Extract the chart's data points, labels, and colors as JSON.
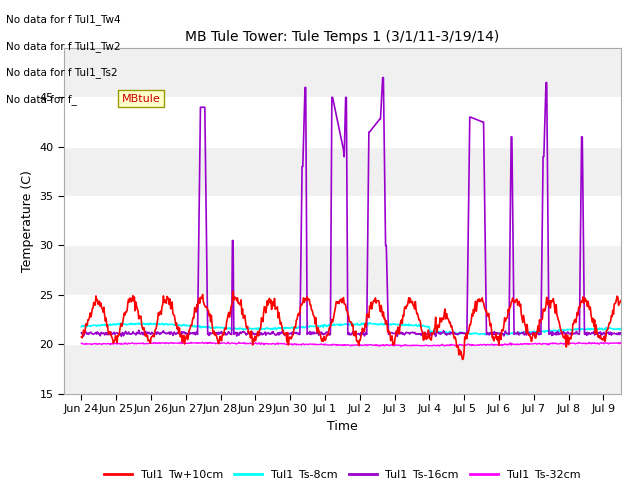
{
  "title": "MB Tule Tower: Tule Temps 1 (3/1/11-3/19/14)",
  "xlabel": "Time",
  "ylabel": "Temperature (C)",
  "ylim": [
    15,
    50
  ],
  "yticks": [
    15,
    20,
    25,
    30,
    35,
    40,
    45
  ],
  "legend_labels": [
    "Tul1_Tw+10cm",
    "Tul1_Ts-8cm",
    "Tul1_Ts-16cm",
    "Tul1_Ts-32cm"
  ],
  "legend_colors": [
    "#ff0000",
    "#00ffff",
    "#9900cc",
    "#ff00ff"
  ],
  "x_tick_labels": [
    "Jun 24",
    "Jun 25",
    "Jun 26",
    "Jun 27",
    "Jun 28",
    "Jun 29",
    "Jun 30",
    "Jul 1",
    "Jul 2",
    "Jul 3",
    "Jul 4",
    "Jul 5",
    "Jul 6",
    "Jul 7",
    "Jul 8",
    "Jul 9"
  ],
  "x_tick_positions": [
    0,
    1,
    2,
    3,
    4,
    5,
    6,
    7,
    8,
    9,
    10,
    11,
    12,
    13,
    14,
    15
  ],
  "xlim": [
    -0.5,
    15.5
  ],
  "band_colors": [
    "#f0f0f0",
    "#ffffff"
  ],
  "fig_bg": "#ffffff",
  "plot_bg": "#ffffff",
  "no_data_lines": [
    "No data for f Tul1_Tw4",
    "No data for f Tul1_Tw2",
    "No data for f Tul1_Ts2",
    "No data for f_"
  ],
  "tooltip_text": "MBtule",
  "tooltip_color": "#cc0000",
  "tooltip_bg": "#ffffcc"
}
